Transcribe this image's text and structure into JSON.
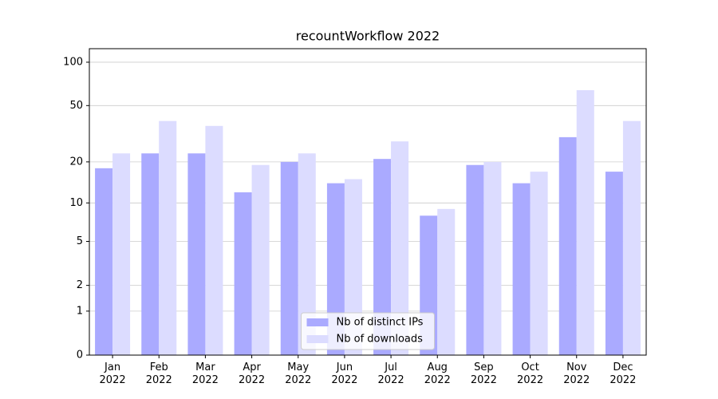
{
  "chart_data": {
    "type": "bar",
    "title": "recountWorkflow 2022",
    "categories": [
      "Jan\n2022",
      "Feb\n2022",
      "Mar\n2022",
      "Apr\n2022",
      "May\n2022",
      "Jun\n2022",
      "Jul\n2022",
      "Aug\n2022",
      "Sep\n2022",
      "Oct\n2022",
      "Nov\n2022",
      "Dec\n2022"
    ],
    "series": [
      {
        "name": "Nb of distinct IPs",
        "color": "#aaaaff",
        "values": [
          18,
          23,
          23,
          12,
          20,
          14,
          21,
          8,
          19,
          14,
          30,
          17
        ]
      },
      {
        "name": "Nb of downloads",
        "color": "#dcdcff",
        "values": [
          23,
          39,
          36,
          19,
          23,
          15,
          28,
          9,
          20,
          17,
          64,
          39
        ]
      }
    ],
    "yscale": "symlog",
    "ylim": [
      0,
      124
    ],
    "yticks": [
      0,
      1,
      2,
      5,
      10,
      20,
      50,
      100
    ],
    "grid": true,
    "legend": "lower center"
  }
}
